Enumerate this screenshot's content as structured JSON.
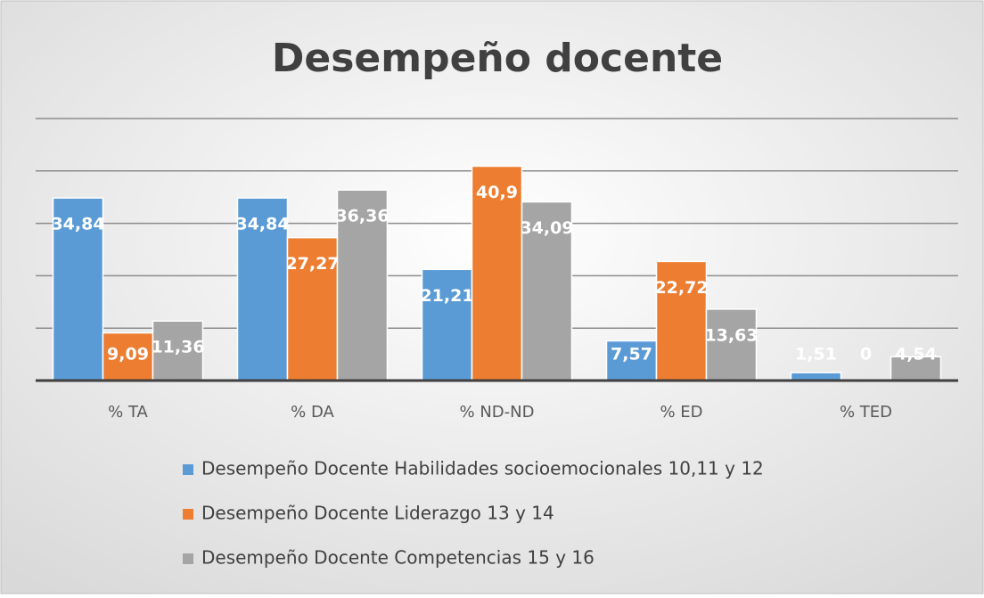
{
  "chart_data": {
    "type": "bar",
    "title": "Desempeño docente",
    "categories": [
      "% TA",
      "% DA",
      "% ND-ND",
      "% ED",
      "% TED"
    ],
    "series": [
      {
        "name": "Desempeño Docente Habilidades socioemocionales 10,11 y 12",
        "color": "#5b9bd5",
        "values": [
          34.84,
          34.84,
          21.21,
          7.57,
          1.51
        ],
        "value_labels": [
          "34,84",
          "34,84",
          "21,21",
          "7,57",
          "1,51"
        ]
      },
      {
        "name": "Desempeño Docente Liderazgo 13 y 14",
        "color": "#ed7d31",
        "values": [
          9.09,
          27.27,
          40.9,
          22.72,
          0
        ],
        "value_labels": [
          "9,09",
          "27,27",
          "40,9",
          "22,72",
          "0"
        ]
      },
      {
        "name": "Desempeño Docente Competencias 15 y 16",
        "color": "#a5a5a5",
        "values": [
          11.36,
          36.36,
          34.09,
          13.63,
          4.54
        ],
        "value_labels": [
          "11,36",
          "36,36",
          "34,09",
          "13,63",
          "4,54"
        ]
      }
    ],
    "ylim": [
      0,
      50
    ],
    "yticks": [
      0,
      10,
      20,
      30,
      40,
      50
    ],
    "grid": true,
    "legend": "bottom"
  }
}
